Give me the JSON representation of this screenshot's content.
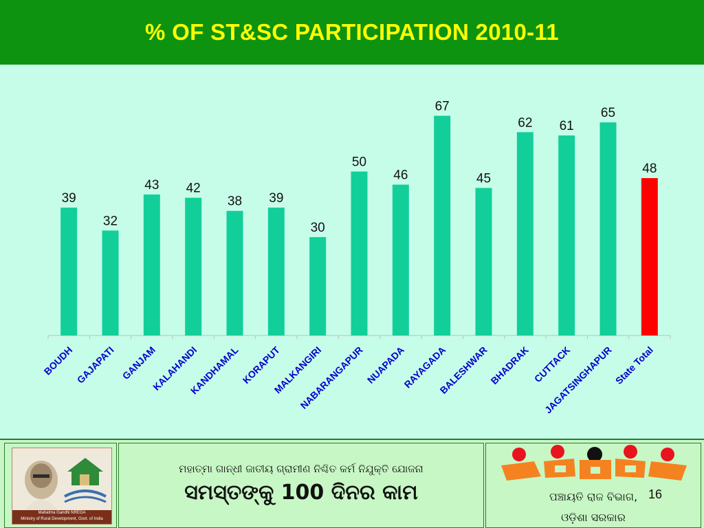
{
  "colors": {
    "header_bg": "#0d9310",
    "title_text": "#ffff00",
    "background": "#c6fde9",
    "bar": "#12cf9a",
    "total_bar": "#ff0000",
    "footer_bg": "#c9f6c7"
  },
  "chart_data": {
    "type": "bar",
    "title": "% OF ST&SC PARTICIPATION 2010-11",
    "categories": [
      "BOUDH",
      "GAJAPATI",
      "GANJAM",
      "KALAHANDI",
      "KANDHAMAL",
      "KORAPUT",
      "MALKANGIRI",
      "NABARANGAPUR",
      "NUAPADA",
      "RAYAGADA",
      "BALESHWAR",
      "BHADRAK",
      "CUTTACK",
      "JAGATSINGHAPUR",
      "State Total"
    ],
    "values": [
      39,
      32,
      43,
      42,
      38,
      39,
      30,
      50,
      46,
      67,
      45,
      62,
      61,
      65,
      48
    ],
    "highlight_index": 14,
    "ylim": [
      0,
      72
    ],
    "xlabel": "",
    "ylabel": "",
    "grid": false,
    "legend": "none",
    "data_labels": true
  },
  "footer": {
    "scheme_line": "ମହାତ୍ମା ଗାନ୍ଧୀ ଜାତୀୟ ଗ୍ରାମୀଣ ନିଶ୍ଚିତ କର୍ମ ନିଯୁକ୍ତି ଯୋଜନା",
    "slogan": "ସମସ୍ତଙ୍କୁ 100 ଦିନର କାମ",
    "dept_line1": "ପଞ୍ଚାୟତି ରାଜ ବିଭାଗ,",
    "dept_line2": "ଓଡ଼ିଶା ସରକାର",
    "page_number": "16",
    "logo_caption_1": "Mahatma Gandhi NREGA",
    "logo_caption_2": "Ministry of Rural Development, Govt. of India"
  }
}
